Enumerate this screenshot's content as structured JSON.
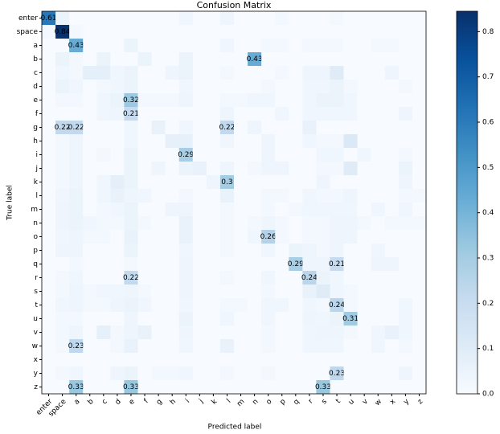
{
  "chart_data": {
    "type": "heatmap",
    "title": "Confusion Matrix",
    "x_label": "Predicted label",
    "y_label": "True label",
    "categories": [
      "enter",
      "space",
      "a",
      "b",
      "c",
      "d",
      "e",
      "f",
      "g",
      "h",
      "i",
      "j",
      "k",
      "l",
      "m",
      "n",
      "o",
      "p",
      "q",
      "r",
      "s",
      "t",
      "u",
      "v",
      "w",
      "x",
      "y",
      "z"
    ],
    "colormap": "Blues",
    "clim": [
      0,
      0.845
    ],
    "cticks": [
      {
        "value": 0,
        "label": "0.0"
      },
      0.1,
      0.2,
      0.3,
      0.4,
      0.5,
      0.6,
      0.7,
      0.8
    ],
    "values": [
      [
        0.61,
        0.05,
        0,
        0,
        0,
        0,
        0,
        0,
        0,
        0,
        0.03,
        0,
        0,
        0.04,
        0,
        0,
        0,
        0.02,
        0,
        0,
        0,
        0.02,
        0,
        0,
        0,
        0,
        0,
        0
      ],
      [
        0.02,
        0.84,
        0.02,
        0,
        0,
        0,
        0,
        0,
        0,
        0,
        0,
        0,
        0,
        0,
        0,
        0,
        0,
        0,
        0,
        0,
        0,
        0,
        0,
        0,
        0,
        0,
        0,
        0
      ],
      [
        0,
        0,
        0.43,
        0,
        0,
        0,
        0.05,
        0,
        0,
        0,
        0,
        0,
        0,
        0.03,
        0,
        0,
        0.02,
        0.02,
        0,
        0.02,
        0.02,
        0.02,
        0,
        0,
        0.02,
        0.02,
        0,
        0
      ],
      [
        0,
        0.05,
        0.02,
        0,
        0.05,
        0,
        0,
        0.05,
        0,
        0,
        0.05,
        0,
        0,
        0,
        0,
        0.43,
        0,
        0,
        0,
        0,
        0,
        0,
        0,
        0,
        0,
        0,
        0,
        0
      ],
      [
        0,
        0.03,
        0.02,
        0.08,
        0.08,
        0.03,
        0.05,
        0,
        0,
        0.04,
        0.05,
        0,
        0,
        0.02,
        0,
        0,
        0,
        0.02,
        0,
        0.04,
        0.04,
        0.1,
        0,
        0,
        0,
        0.04,
        0,
        0
      ],
      [
        0,
        0.05,
        0.03,
        0,
        0.02,
        0.03,
        0.05,
        0,
        0,
        0,
        0.03,
        0,
        0,
        0,
        0,
        0,
        0.02,
        0,
        0,
        0.03,
        0.03,
        0.05,
        0.02,
        0,
        0,
        0,
        0.02,
        0
      ],
      [
        0,
        0.02,
        0.02,
        0,
        0.03,
        0.05,
        0.32,
        0.02,
        0.02,
        0.02,
        0.04,
        0,
        0,
        0.02,
        0.02,
        0.03,
        0.03,
        0,
        0,
        0.03,
        0.05,
        0.05,
        0.03,
        0,
        0,
        0,
        0,
        0
      ],
      [
        0,
        0,
        0,
        0,
        0.03,
        0.04,
        0.21,
        0,
        0,
        0,
        0,
        0,
        0,
        0.04,
        0,
        0,
        0,
        0.03,
        0,
        0.03,
        0.03,
        0.03,
        0.03,
        0,
        0,
        0,
        0.04,
        0
      ],
      [
        0,
        0.22,
        0.22,
        0,
        0,
        0,
        0.03,
        0,
        0.06,
        0,
        0.03,
        0,
        0,
        0.22,
        0,
        0.04,
        0,
        0,
        0,
        0.06,
        0,
        0,
        0,
        0,
        0,
        0,
        0,
        0
      ],
      [
        0,
        0.02,
        0.04,
        0,
        0,
        0,
        0.03,
        0,
        0,
        0.07,
        0.07,
        0,
        0,
        0.03,
        0,
        0,
        0.04,
        0,
        0,
        0.03,
        0.02,
        0.02,
        0.12,
        0,
        0,
        0,
        0,
        0
      ],
      [
        0,
        0.02,
        0.04,
        0,
        0.02,
        0,
        0.05,
        0,
        0,
        0,
        0.29,
        0,
        0,
        0,
        0,
        0,
        0.04,
        0,
        0,
        0,
        0.03,
        0.03,
        0,
        0.03,
        0,
        0,
        0.02,
        0
      ],
      [
        0,
        0.02,
        0.04,
        0,
        0,
        0,
        0.05,
        0,
        0.04,
        0,
        0.05,
        0.06,
        0,
        0.04,
        0,
        0.02,
        0.04,
        0.04,
        0,
        0,
        0.02,
        0.02,
        0.1,
        0,
        0,
        0,
        0.05,
        0
      ],
      [
        0,
        0.02,
        0.04,
        0,
        0.03,
        0.08,
        0.05,
        0,
        0,
        0,
        0,
        0,
        0.04,
        0.3,
        0,
        0,
        0,
        0,
        0,
        0,
        0.04,
        0,
        0,
        0,
        0,
        0,
        0.04,
        0
      ],
      [
        0,
        0.03,
        0.05,
        0,
        0.03,
        0.06,
        0.04,
        0.03,
        0,
        0,
        0.02,
        0,
        0,
        0.06,
        0,
        0,
        0.02,
        0.02,
        0,
        0.03,
        0.02,
        0.02,
        0.04,
        0,
        0,
        0,
        0.02,
        0.02
      ],
      [
        0,
        0.04,
        0.05,
        0,
        0.02,
        0.03,
        0.05,
        0,
        0,
        0.04,
        0.04,
        0,
        0,
        0.02,
        0,
        0,
        0.02,
        0,
        0.02,
        0.03,
        0.03,
        0.03,
        0.03,
        0,
        0.03,
        0,
        0.03,
        0
      ],
      [
        0,
        0.04,
        0.05,
        0.03,
        0.02,
        0.02,
        0.05,
        0.02,
        0,
        0,
        0.06,
        0,
        0,
        0.02,
        0,
        0.02,
        0.04,
        0.02,
        0,
        0.02,
        0.02,
        0.04,
        0.04,
        0.02,
        0,
        0.02,
        0.02,
        0.02
      ],
      [
        0,
        0.03,
        0.04,
        0.02,
        0.02,
        0,
        0.06,
        0,
        0,
        0,
        0.06,
        0,
        0,
        0.02,
        0,
        0.03,
        0.26,
        0.02,
        0,
        0.02,
        0.02,
        0.04,
        0.04,
        0,
        0,
        0,
        0,
        0
      ],
      [
        0,
        0.04,
        0.04,
        0,
        0,
        0,
        0.05,
        0,
        0,
        0,
        0.03,
        0,
        0,
        0.02,
        0,
        0,
        0.03,
        0,
        0.05,
        0.04,
        0.02,
        0.04,
        0,
        0,
        0.03,
        0,
        0,
        0
      ],
      [
        0,
        0,
        0.02,
        0,
        0,
        0,
        0.02,
        0,
        0,
        0,
        0.04,
        0,
        0,
        0,
        0,
        0,
        0,
        0,
        0.29,
        0.04,
        0.04,
        0.21,
        0,
        0,
        0.04,
        0.04,
        0,
        0
      ],
      [
        0,
        0.02,
        0.03,
        0,
        0,
        0,
        0.22,
        0,
        0,
        0,
        0.04,
        0,
        0,
        0.02,
        0,
        0,
        0.03,
        0,
        0,
        0.24,
        0.05,
        0.03,
        0,
        0,
        0,
        0,
        0,
        0
      ],
      [
        0,
        0.02,
        0.04,
        0.02,
        0.03,
        0.03,
        0.04,
        0.02,
        0,
        0,
        0.04,
        0,
        0,
        0,
        0,
        0,
        0.02,
        0,
        0,
        0.06,
        0.1,
        0.03,
        0.02,
        0,
        0,
        0,
        0,
        0
      ],
      [
        0,
        0.03,
        0.04,
        0.02,
        0.02,
        0.04,
        0.05,
        0.03,
        0,
        0,
        0.03,
        0,
        0,
        0.02,
        0.02,
        0,
        0.03,
        0.03,
        0,
        0.03,
        0.02,
        0.24,
        0.02,
        0,
        0,
        0,
        0.03,
        0
      ],
      [
        0,
        0.02,
        0.02,
        0,
        0,
        0,
        0.04,
        0,
        0,
        0,
        0.05,
        0,
        0,
        0.03,
        0,
        0,
        0.03,
        0,
        0,
        0.04,
        0.03,
        0.05,
        0.31,
        0,
        0,
        0,
        0.03,
        0
      ],
      [
        0,
        0.02,
        0.04,
        0,
        0.07,
        0.02,
        0.04,
        0.06,
        0,
        0,
        0.04,
        0,
        0,
        0,
        0,
        0,
        0.02,
        0,
        0,
        0.03,
        0.04,
        0.04,
        0.02,
        0,
        0.03,
        0.06,
        0.03,
        0
      ],
      [
        0,
        0.02,
        0.23,
        0,
        0,
        0.02,
        0.06,
        0,
        0,
        0,
        0.03,
        0,
        0,
        0.06,
        0,
        0,
        0.02,
        0,
        0,
        0.03,
        0.03,
        0.03,
        0,
        0,
        0.03,
        0,
        0.02,
        0
      ],
      [
        0,
        0,
        0,
        0,
        0,
        0,
        0,
        0,
        0,
        0,
        0,
        0,
        0,
        0,
        0,
        0,
        0,
        0,
        0,
        0,
        0,
        0,
        0,
        0,
        0,
        0,
        0,
        0
      ],
      [
        0,
        0.02,
        0.03,
        0,
        0,
        0.04,
        0.05,
        0,
        0.02,
        0.02,
        0.03,
        0,
        0,
        0.02,
        0,
        0,
        0.02,
        0,
        0,
        0,
        0,
        0.23,
        0,
        0,
        0,
        0,
        0.04,
        0
      ],
      [
        0,
        0,
        0.33,
        0,
        0,
        0,
        0.33,
        0,
        0,
        0,
        0,
        0,
        0,
        0,
        0,
        0,
        0,
        0,
        0,
        0,
        0.33,
        0,
        0,
        0,
        0,
        0,
        0,
        0
      ]
    ]
  }
}
